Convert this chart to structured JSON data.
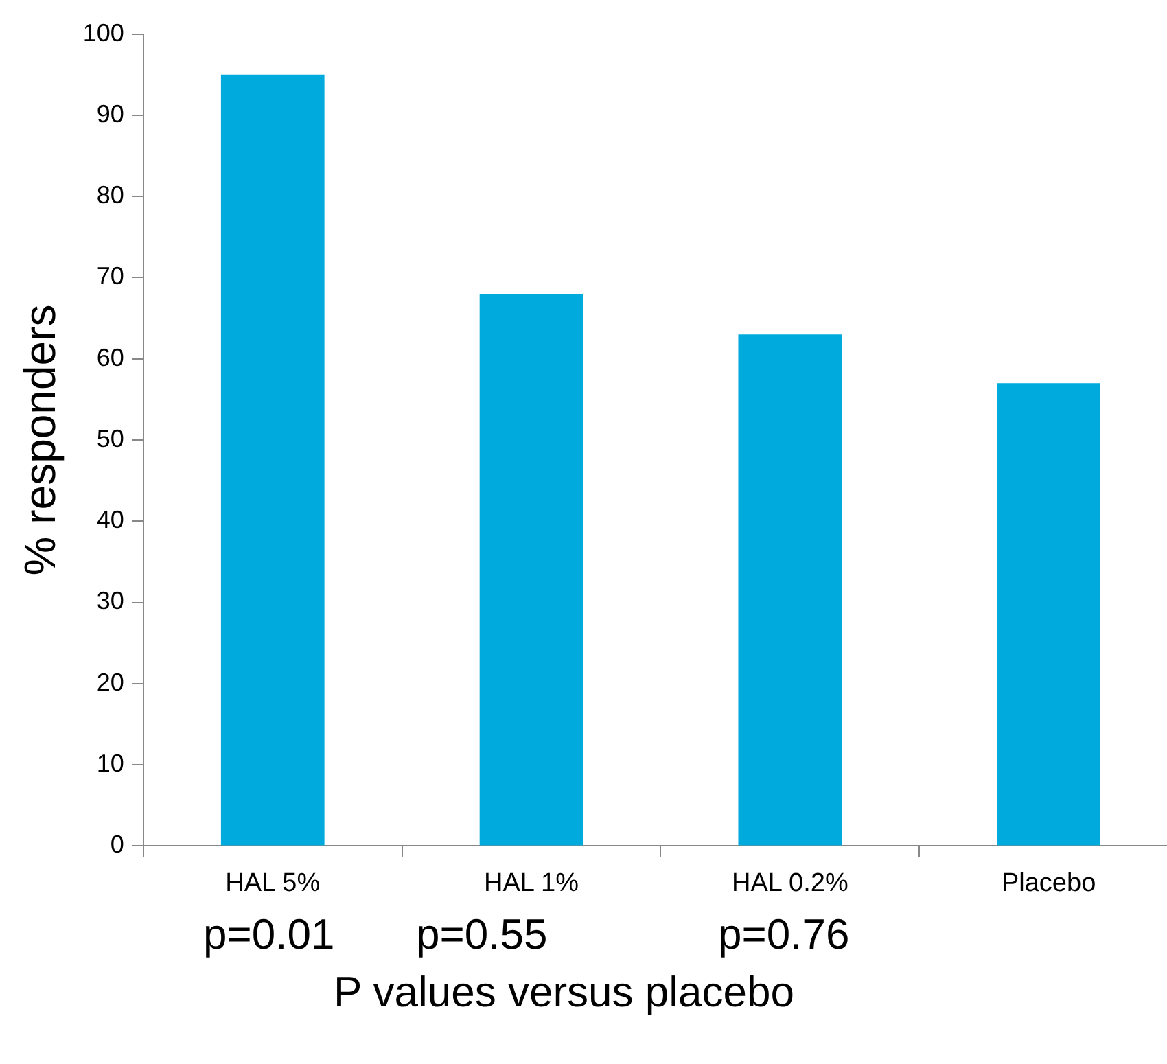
{
  "chart_data": {
    "type": "bar",
    "ylabel": "% responders",
    "xlabel": "P values versus placebo",
    "categories": [
      "HAL 5%",
      "HAL 1%",
      "HAL 0.2%",
      "Placebo"
    ],
    "values": [
      95,
      68,
      63,
      57
    ],
    "color": "#00aadc",
    "ylim": [
      0,
      100
    ],
    "yticks": [
      0,
      10,
      20,
      30,
      40,
      50,
      60,
      70,
      80,
      90,
      100
    ],
    "annotations": [
      "p=0.01",
      "p=0.55",
      "p=0.76"
    ]
  }
}
